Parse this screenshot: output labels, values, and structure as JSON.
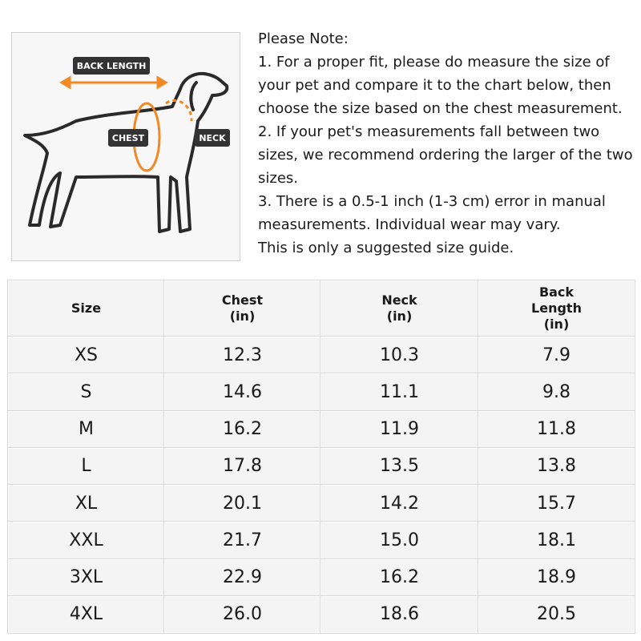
{
  "diagram": {
    "labels": {
      "back_length": "BACK LENGTH",
      "chest": "CHEST",
      "neck": "NECK"
    }
  },
  "note": {
    "title": "Please Note:",
    "lines": [
      "1. For a proper fit, please do measure the size of",
      "your pet and compare it to the chart below, then",
      "choose the size based on the chest measurement.",
      "2. If your pet's measurements fall between two",
      "sizes, we recommend ordering the larger of the two",
      "sizes.",
      "3. There is a 0.5-1 inch (1-3 cm) error in manual",
      "measurements. Individual wear may vary.",
      "This is only a suggested size guide."
    ]
  },
  "table": {
    "headers": [
      [
        "Size"
      ],
      [
        "Chest",
        "(in)"
      ],
      [
        "Neck",
        "(in)"
      ],
      [
        "Back",
        "Length",
        "(in)"
      ]
    ],
    "rows": [
      [
        "XS",
        "12.3",
        "10.3",
        "7.9"
      ],
      [
        "S",
        "14.6",
        "11.1",
        "9.8"
      ],
      [
        "M",
        "16.2",
        "11.9",
        "11.8"
      ],
      [
        "L",
        "17.8",
        "13.5",
        "13.8"
      ],
      [
        "XL",
        "20.1",
        "14.2",
        "15.7"
      ],
      [
        "XXL",
        "21.7",
        "15.0",
        "18.1"
      ],
      [
        "3XL",
        "22.9",
        "16.2",
        "18.9"
      ],
      [
        "4XL",
        "26.0",
        "18.6",
        "20.5"
      ]
    ]
  }
}
